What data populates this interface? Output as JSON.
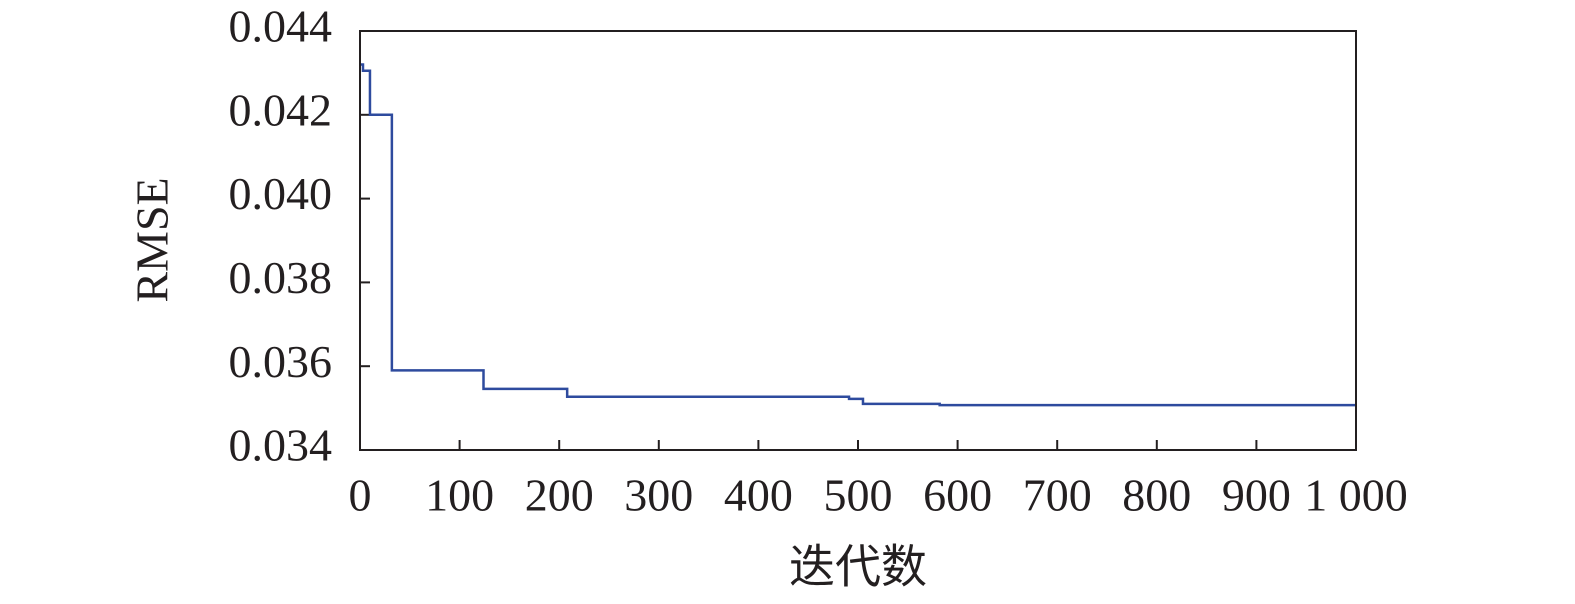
{
  "chart_data": {
    "type": "line",
    "x_label": "迭代数",
    "y_label": "RMSE",
    "x": [
      0,
      3,
      3,
      10,
      10,
      32,
      32,
      124,
      124,
      208,
      208,
      491,
      491,
      505,
      505,
      582,
      582,
      1000
    ],
    "series": [
      {
        "color": "#2e4b9e",
        "values": [
          0.0432,
          0.0432,
          0.04305,
          0.04305,
          0.042,
          0.042,
          0.0359,
          0.0359,
          0.03546,
          0.03546,
          0.03527,
          0.03527,
          0.03522,
          0.03522,
          0.0351,
          0.0351,
          0.03507,
          0.03507
        ]
      }
    ],
    "xlim": [
      0,
      1000
    ],
    "xticks": [
      0,
      100,
      200,
      300,
      400,
      500,
      600,
      700,
      800,
      900,
      {
        "value": 1000,
        "label": "1 000"
      }
    ],
    "ylim": [
      0.034,
      0.044
    ],
    "yticks": [
      0.034,
      0.036,
      0.038,
      {
        "value": 0.04,
        "label": "0.040"
      },
      0.042,
      0.044
    ]
  }
}
